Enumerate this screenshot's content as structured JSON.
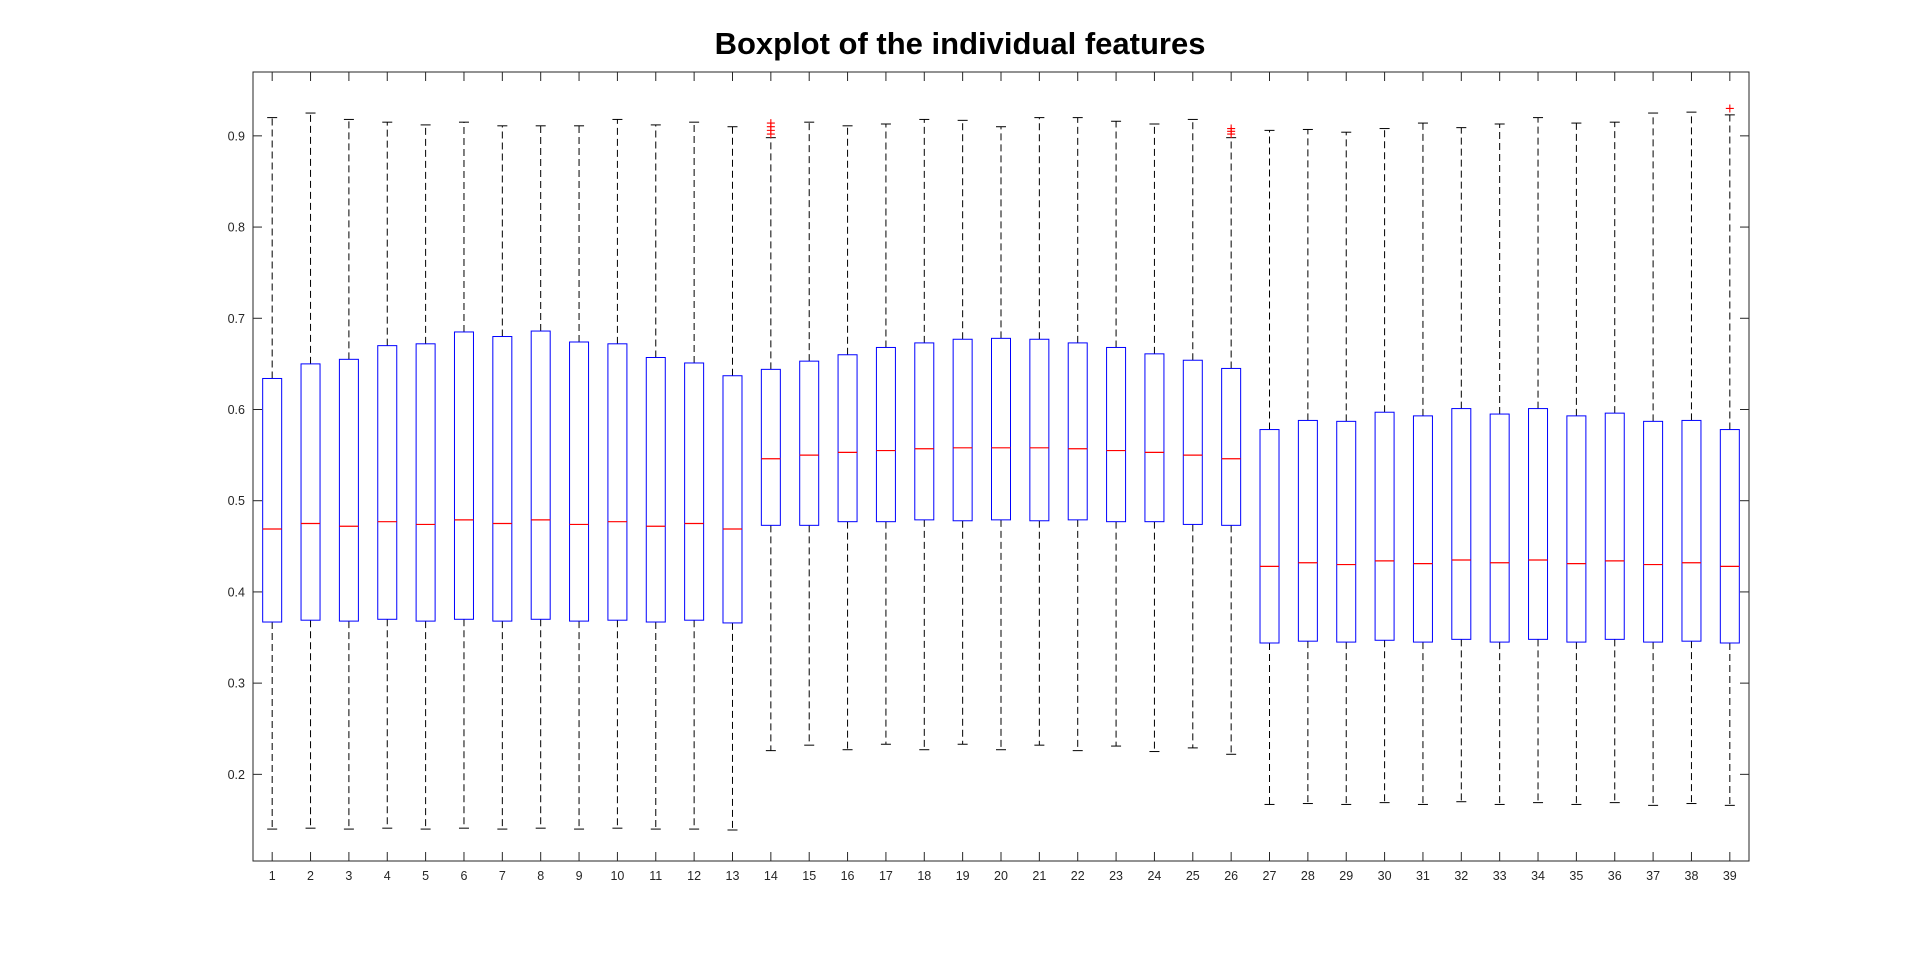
{
  "chart_data": {
    "type": "boxplot",
    "title": "Boxplot of the individual features",
    "xlabel": "",
    "ylabel": "",
    "ylim": [
      0.105,
      0.97
    ],
    "yticks": [
      0.2,
      0.3,
      0.4,
      0.5,
      0.6,
      0.7,
      0.8,
      0.9
    ],
    "grid": false,
    "colors": {
      "box": "#0000ff",
      "median": "#ff0000",
      "whisker": "#000000",
      "outlier": "#ff0000"
    },
    "categories": [
      "1",
      "2",
      "3",
      "4",
      "5",
      "6",
      "7",
      "8",
      "9",
      "10",
      "11",
      "12",
      "13",
      "14",
      "15",
      "16",
      "17",
      "18",
      "19",
      "20",
      "21",
      "22",
      "23",
      "24",
      "25",
      "26",
      "27",
      "28",
      "29",
      "30",
      "31",
      "32",
      "33",
      "34",
      "35",
      "36",
      "37",
      "38",
      "39"
    ],
    "boxes": [
      {
        "whisker_low": 0.14,
        "q1": 0.367,
        "median": 0.469,
        "q3": 0.634,
        "whisker_high": 0.92,
        "outliers": []
      },
      {
        "whisker_low": 0.141,
        "q1": 0.369,
        "median": 0.475,
        "q3": 0.65,
        "whisker_high": 0.925,
        "outliers": []
      },
      {
        "whisker_low": 0.14,
        "q1": 0.368,
        "median": 0.472,
        "q3": 0.655,
        "whisker_high": 0.918,
        "outliers": []
      },
      {
        "whisker_low": 0.141,
        "q1": 0.37,
        "median": 0.477,
        "q3": 0.67,
        "whisker_high": 0.915,
        "outliers": []
      },
      {
        "whisker_low": 0.14,
        "q1": 0.368,
        "median": 0.474,
        "q3": 0.672,
        "whisker_high": 0.912,
        "outliers": []
      },
      {
        "whisker_low": 0.141,
        "q1": 0.37,
        "median": 0.479,
        "q3": 0.685,
        "whisker_high": 0.915,
        "outliers": []
      },
      {
        "whisker_low": 0.14,
        "q1": 0.368,
        "median": 0.475,
        "q3": 0.68,
        "whisker_high": 0.911,
        "outliers": []
      },
      {
        "whisker_low": 0.141,
        "q1": 0.37,
        "median": 0.479,
        "q3": 0.686,
        "whisker_high": 0.911,
        "outliers": []
      },
      {
        "whisker_low": 0.14,
        "q1": 0.368,
        "median": 0.474,
        "q3": 0.674,
        "whisker_high": 0.911,
        "outliers": []
      },
      {
        "whisker_low": 0.141,
        "q1": 0.369,
        "median": 0.477,
        "q3": 0.672,
        "whisker_high": 0.918,
        "outliers": []
      },
      {
        "whisker_low": 0.14,
        "q1": 0.367,
        "median": 0.472,
        "q3": 0.657,
        "whisker_high": 0.912,
        "outliers": []
      },
      {
        "whisker_low": 0.14,
        "q1": 0.369,
        "median": 0.475,
        "q3": 0.651,
        "whisker_high": 0.915,
        "outliers": []
      },
      {
        "whisker_low": 0.139,
        "q1": 0.366,
        "median": 0.469,
        "q3": 0.637,
        "whisker_high": 0.91,
        "outliers": []
      },
      {
        "whisker_low": 0.226,
        "q1": 0.473,
        "median": 0.546,
        "q3": 0.644,
        "whisker_high": 0.898,
        "outliers": [
          0.902,
          0.906,
          0.91,
          0.914
        ]
      },
      {
        "whisker_low": 0.232,
        "q1": 0.473,
        "median": 0.55,
        "q3": 0.653,
        "whisker_high": 0.915,
        "outliers": []
      },
      {
        "whisker_low": 0.227,
        "q1": 0.477,
        "median": 0.553,
        "q3": 0.66,
        "whisker_high": 0.911,
        "outliers": []
      },
      {
        "whisker_low": 0.233,
        "q1": 0.477,
        "median": 0.555,
        "q3": 0.668,
        "whisker_high": 0.913,
        "outliers": []
      },
      {
        "whisker_low": 0.227,
        "q1": 0.479,
        "median": 0.557,
        "q3": 0.673,
        "whisker_high": 0.918,
        "outliers": []
      },
      {
        "whisker_low": 0.233,
        "q1": 0.478,
        "median": 0.558,
        "q3": 0.677,
        "whisker_high": 0.917,
        "outliers": []
      },
      {
        "whisker_low": 0.227,
        "q1": 0.479,
        "median": 0.558,
        "q3": 0.678,
        "whisker_high": 0.91,
        "outliers": []
      },
      {
        "whisker_low": 0.232,
        "q1": 0.478,
        "median": 0.558,
        "q3": 0.677,
        "whisker_high": 0.92,
        "outliers": []
      },
      {
        "whisker_low": 0.226,
        "q1": 0.479,
        "median": 0.557,
        "q3": 0.673,
        "whisker_high": 0.92,
        "outliers": []
      },
      {
        "whisker_low": 0.231,
        "q1": 0.477,
        "median": 0.555,
        "q3": 0.668,
        "whisker_high": 0.916,
        "outliers": []
      },
      {
        "whisker_low": 0.225,
        "q1": 0.477,
        "median": 0.553,
        "q3": 0.661,
        "whisker_high": 0.913,
        "outliers": []
      },
      {
        "whisker_low": 0.229,
        "q1": 0.474,
        "median": 0.55,
        "q3": 0.654,
        "whisker_high": 0.918,
        "outliers": []
      },
      {
        "whisker_low": 0.222,
        "q1": 0.473,
        "median": 0.546,
        "q3": 0.645,
        "whisker_high": 0.898,
        "outliers": [
          0.902,
          0.905,
          0.908
        ]
      },
      {
        "whisker_low": 0.167,
        "q1": 0.344,
        "median": 0.428,
        "q3": 0.578,
        "whisker_high": 0.906,
        "outliers": []
      },
      {
        "whisker_low": 0.168,
        "q1": 0.346,
        "median": 0.432,
        "q3": 0.588,
        "whisker_high": 0.907,
        "outliers": []
      },
      {
        "whisker_low": 0.167,
        "q1": 0.345,
        "median": 0.43,
        "q3": 0.587,
        "whisker_high": 0.904,
        "outliers": []
      },
      {
        "whisker_low": 0.169,
        "q1": 0.347,
        "median": 0.434,
        "q3": 0.597,
        "whisker_high": 0.908,
        "outliers": []
      },
      {
        "whisker_low": 0.167,
        "q1": 0.345,
        "median": 0.431,
        "q3": 0.593,
        "whisker_high": 0.914,
        "outliers": []
      },
      {
        "whisker_low": 0.17,
        "q1": 0.348,
        "median": 0.435,
        "q3": 0.601,
        "whisker_high": 0.909,
        "outliers": []
      },
      {
        "whisker_low": 0.167,
        "q1": 0.345,
        "median": 0.432,
        "q3": 0.595,
        "whisker_high": 0.913,
        "outliers": []
      },
      {
        "whisker_low": 0.169,
        "q1": 0.348,
        "median": 0.435,
        "q3": 0.601,
        "whisker_high": 0.92,
        "outliers": []
      },
      {
        "whisker_low": 0.167,
        "q1": 0.345,
        "median": 0.431,
        "q3": 0.593,
        "whisker_high": 0.914,
        "outliers": []
      },
      {
        "whisker_low": 0.169,
        "q1": 0.348,
        "median": 0.434,
        "q3": 0.596,
        "whisker_high": 0.915,
        "outliers": []
      },
      {
        "whisker_low": 0.166,
        "q1": 0.345,
        "median": 0.43,
        "q3": 0.587,
        "whisker_high": 0.925,
        "outliers": []
      },
      {
        "whisker_low": 0.168,
        "q1": 0.346,
        "median": 0.432,
        "q3": 0.588,
        "whisker_high": 0.926,
        "outliers": []
      },
      {
        "whisker_low": 0.166,
        "q1": 0.344,
        "median": 0.428,
        "q3": 0.578,
        "whisker_high": 0.923,
        "outliers": [
          0.93
        ]
      }
    ]
  }
}
